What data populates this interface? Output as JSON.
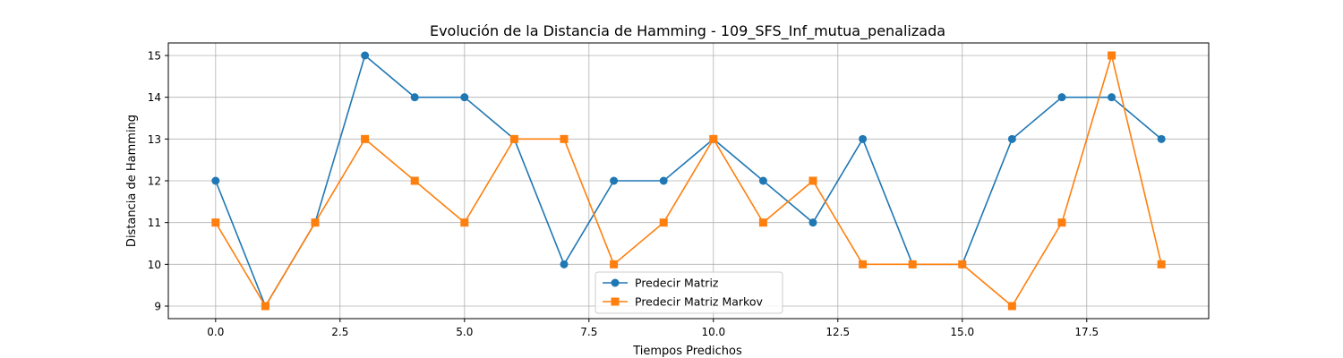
{
  "chart_data": {
    "type": "line",
    "title": "Evolución de la Distancia de Hamming - 109_SFS_Inf_mutua_penalizada",
    "xlabel": "Tiempos Predichos",
    "ylabel": "Distancia de Hamming",
    "xlim": [
      -0.95,
      19.95
    ],
    "ylim": [
      8.7,
      15.3
    ],
    "x_ticks": [
      0.0,
      2.5,
      5.0,
      7.5,
      10.0,
      12.5,
      15.0,
      17.5
    ],
    "x_tick_labels": [
      "0.0",
      "2.5",
      "5.0",
      "7.5",
      "10.0",
      "12.5",
      "15.0",
      "17.5"
    ],
    "y_ticks": [
      9,
      10,
      11,
      12,
      13,
      14,
      15
    ],
    "y_tick_labels": [
      "9",
      "10",
      "11",
      "12",
      "13",
      "14",
      "15"
    ],
    "grid": true,
    "legend_position": "lower-center",
    "x": [
      0,
      1,
      2,
      3,
      4,
      5,
      6,
      7,
      8,
      9,
      10,
      11,
      12,
      13,
      14,
      15,
      16,
      17,
      18,
      19
    ],
    "series": [
      {
        "name": "Predecir Matriz",
        "color": "#1f77b4",
        "marker": "circle",
        "values": [
          12,
          9,
          11,
          15,
          14,
          14,
          13,
          10,
          12,
          12,
          13,
          12,
          11,
          13,
          10,
          10,
          13,
          14,
          14,
          13
        ]
      },
      {
        "name": "Predecir Matriz Markov",
        "color": "#ff7f0e",
        "marker": "square",
        "values": [
          11,
          9,
          11,
          13,
          12,
          11,
          13,
          13,
          10,
          11,
          13,
          11,
          12,
          10,
          10,
          10,
          9,
          11,
          15,
          10
        ]
      }
    ]
  }
}
